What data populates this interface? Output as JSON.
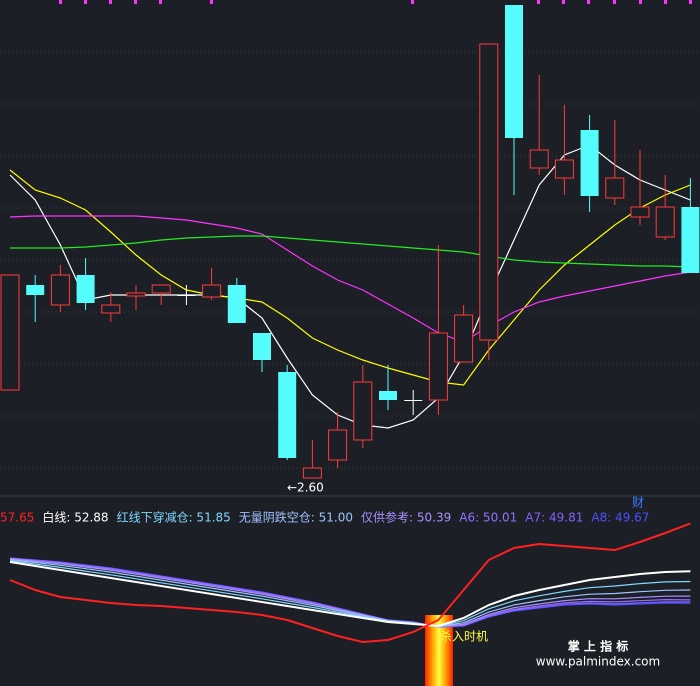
{
  "chart_data": [
    {
      "type": "candlestick",
      "open": [
        2.776,
        2.986,
        2.946,
        3.006,
        2.93,
        2.964,
        2.97,
        2.966,
        2.962,
        2.986,
        2.89,
        2.812,
        2.6,
        2.636,
        2.676,
        2.774,
        2.756,
        2.756,
        2.832,
        2.876,
        3.546,
        3.22,
        3.2,
        3.296,
        3.16,
        3.122,
        3.082,
        3.142
      ],
      "high": [
        3.006,
        3.006,
        3.026,
        3.04,
        2.972,
        2.986,
        2.986,
        2.986,
        3.02,
        3.0,
        2.89,
        2.826,
        2.676,
        2.732,
        2.826,
        2.826,
        2.776,
        3.066,
        2.946,
        3.468,
        3.546,
        3.406,
        3.346,
        3.326,
        3.316,
        3.256,
        3.206,
        3.2
      ],
      "low": [
        2.776,
        2.912,
        2.932,
        2.936,
        2.912,
        2.936,
        2.946,
        2.946,
        2.956,
        2.91,
        2.812,
        2.636,
        2.6,
        2.62,
        2.66,
        2.736,
        2.726,
        2.726,
        2.832,
        2.836,
        3.166,
        3.206,
        3.166,
        3.132,
        3.146,
        3.106,
        3.076,
        3.01
      ],
      "close": [
        3.006,
        2.966,
        3.006,
        2.95,
        2.946,
        2.97,
        2.986,
        2.966,
        2.986,
        2.91,
        2.836,
        2.64,
        2.62,
        2.696,
        2.792,
        2.756,
        2.756,
        2.89,
        2.926,
        3.468,
        3.28,
        3.256,
        3.236,
        3.164,
        3.2,
        3.142,
        3.142,
        3.01
      ],
      "up_color": "#ff3b3b",
      "down_color": "#54fcfc",
      "flat_color": "#ffffff",
      "ylim": [
        2.566,
        3.556
      ],
      "series": [
        {
          "color": "#ffffff",
          "values": [
            3.206,
            3.156,
            3.066,
            2.956,
            2.966,
            2.966,
            2.966,
            2.966,
            2.966,
            2.96,
            2.92,
            2.84,
            2.766,
            2.726,
            2.706,
            2.7,
            2.716,
            2.76,
            2.846,
            2.966,
            3.076,
            3.186,
            3.246,
            3.266,
            3.226,
            3.196,
            3.176,
            3.156
          ]
        },
        {
          "color": "#ffff00",
          "values": [
            3.216,
            3.176,
            3.16,
            3.136,
            3.092,
            3.046,
            3.006,
            2.976,
            2.966,
            2.96,
            2.952,
            2.92,
            2.88,
            2.856,
            2.836,
            2.82,
            2.806,
            2.792,
            2.786,
            2.856,
            2.916,
            2.976,
            3.026,
            3.066,
            3.106,
            3.14,
            3.166,
            3.186
          ]
        },
        {
          "color": "#ff33ff",
          "values": [
            3.122,
            3.124,
            3.124,
            3.124,
            3.124,
            3.124,
            3.12,
            3.116,
            3.108,
            3.1,
            3.088,
            3.056,
            3.024,
            2.996,
            2.976,
            2.948,
            2.92,
            2.89,
            2.872,
            2.904,
            2.932,
            2.952,
            2.964,
            2.974,
            2.984,
            2.994,
            3.004,
            3.012
          ]
        },
        {
          "color": "#22ee22",
          "values": [
            3.06,
            3.06,
            3.06,
            3.062,
            3.066,
            3.07,
            3.076,
            3.08,
            3.082,
            3.084,
            3.084,
            3.08,
            3.076,
            3.072,
            3.068,
            3.064,
            3.06,
            3.056,
            3.052,
            3.044,
            3.036,
            3.032,
            3.03,
            3.028,
            3.026,
            3.024,
            3.024,
            3.022
          ]
        }
      ],
      "low_label": "←2.60",
      "marker": "财"
    },
    {
      "type": "line",
      "ylim": [
        41.4,
        58.8
      ],
      "series": [
        {
          "label": "A8: 49.67",
          "color": "#4f4fff",
          "values": [
            54.2,
            54.0,
            53.8,
            53.5,
            53.2,
            52.8,
            52.4,
            52.0,
            51.6,
            51.2,
            50.8,
            50.3,
            49.8,
            49.2,
            48.6,
            48.0,
            47.8,
            47.3,
            47.4,
            48.3,
            48.9,
            49.2,
            49.5,
            49.6,
            49.5,
            49.6,
            49.7,
            49.67
          ]
        },
        {
          "label": "A7: 49.81",
          "color": "#8060ff",
          "values": [
            54.18,
            53.98,
            53.77,
            53.46,
            53.16,
            52.76,
            52.36,
            51.96,
            51.56,
            51.16,
            50.76,
            50.26,
            49.77,
            49.18,
            48.58,
            47.99,
            47.79,
            47.3,
            47.43,
            48.35,
            48.96,
            49.27,
            49.58,
            49.7,
            49.61,
            49.72,
            49.82,
            49.81
          ]
        },
        {
          "label": "A6: 50.01",
          "color": "#9370ff",
          "values": [
            54.16,
            53.93,
            53.71,
            53.4,
            53.09,
            52.69,
            52.29,
            51.89,
            51.49,
            51.09,
            50.69,
            50.2,
            49.71,
            49.13,
            48.56,
            47.98,
            47.78,
            47.31,
            47.49,
            48.43,
            49.06,
            49.4,
            49.72,
            49.86,
            49.81,
            49.93,
            50.04,
            50.01
          ]
        },
        {
          "label": "仅供参考: 50.39",
          "color": "#a890ff",
          "values": [
            54.11,
            53.87,
            53.62,
            53.3,
            52.98,
            52.58,
            52.18,
            51.78,
            51.38,
            50.98,
            50.58,
            50.1,
            49.62,
            49.07,
            48.51,
            47.96,
            47.76,
            47.32,
            47.58,
            48.56,
            49.23,
            49.6,
            49.94,
            50.13,
            50.12,
            50.26,
            50.38,
            50.39
          ]
        },
        {
          "label": "无量阴跌空仓: 51.00",
          "color": "#9ec3ff",
          "values": [
            54.04,
            53.75,
            53.47,
            53.13,
            52.79,
            52.39,
            51.99,
            51.59,
            51.19,
            50.79,
            50.39,
            49.93,
            49.47,
            48.95,
            48.44,
            47.92,
            47.72,
            47.34,
            47.73,
            48.79,
            49.51,
            49.94,
            50.32,
            50.58,
            50.65,
            50.83,
            50.97,
            51.0
          ]
        },
        {
          "label": "红线下穿减仓: 51.85",
          "color": "#7fd8ff",
          "values": [
            53.93,
            53.59,
            53.26,
            52.89,
            52.52,
            52.12,
            51.72,
            51.32,
            50.92,
            50.52,
            50.12,
            49.69,
            49.26,
            48.79,
            48.33,
            47.86,
            47.66,
            47.37,
            47.94,
            49.12,
            49.92,
            50.42,
            50.86,
            51.23,
            51.4,
            51.64,
            51.81,
            51.85
          ]
        },
        {
          "label": "白线: 52.88",
          "color": "#ffffff",
          "values": [
            53.8,
            53.4,
            53.0,
            52.6,
            52.2,
            51.8,
            51.4,
            51.0,
            50.6,
            50.2,
            49.8,
            49.4,
            49.0,
            48.6,
            48.2,
            47.8,
            47.6,
            47.4,
            48.2,
            49.5,
            50.4,
            51.0,
            51.5,
            52.0,
            52.3,
            52.6,
            52.8,
            52.88
          ]
        },
        {
          "label": "57.65",
          "color": "#ff2020",
          "values": [
            52.0,
            51.0,
            50.3,
            50.0,
            49.7,
            49.5,
            49.4,
            49.2,
            49.0,
            48.8,
            48.5,
            48.0,
            47.2,
            46.4,
            45.8,
            46.0,
            46.8,
            48.0,
            51.0,
            54.0,
            55.2,
            55.6,
            55.4,
            55.2,
            55.0,
            55.8,
            56.7,
            57.65
          ]
        }
      ],
      "signal": "杀入时机"
    }
  ],
  "watermark": {
    "title": "掌 上 指 标",
    "url": "www.palmindex.com"
  }
}
